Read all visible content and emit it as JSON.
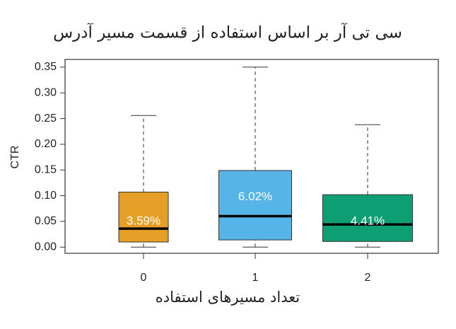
{
  "chart_data": {
    "type": "box",
    "title": "سی تی آر بر اساس استفاده از قسمت مسیر آدرس",
    "x_label": "تعداد مسیرهای استفاده",
    "y_label": "CTR",
    "categories": [
      "0",
      "1",
      "2"
    ],
    "whisker_low": [
      0,
      0,
      0
    ],
    "q1": [
      0.01,
      0.014,
      0.011
    ],
    "median": [
      0.0359,
      0.0602,
      0.0441
    ],
    "q3": [
      0.107,
      0.149,
      0.102
    ],
    "whisker_high": [
      0.256,
      0.35,
      0.238
    ],
    "value_labels": [
      "3.59%",
      "6.02%",
      "4.41%"
    ],
    "colors": [
      "#E69F26",
      "#56B4E9",
      "#0E9E73"
    ],
    "ylim": [
      -0.012,
      0.365
    ],
    "yticks": [
      {
        "value": 0,
        "label": "0.00"
      },
      0.05,
      {
        "value": 0.1,
        "label": "0.10"
      },
      0.15,
      {
        "value": 0.2,
        "label": "0.20"
      },
      0.25,
      {
        "value": 0.3,
        "label": "0.30"
      },
      0.35
    ]
  }
}
